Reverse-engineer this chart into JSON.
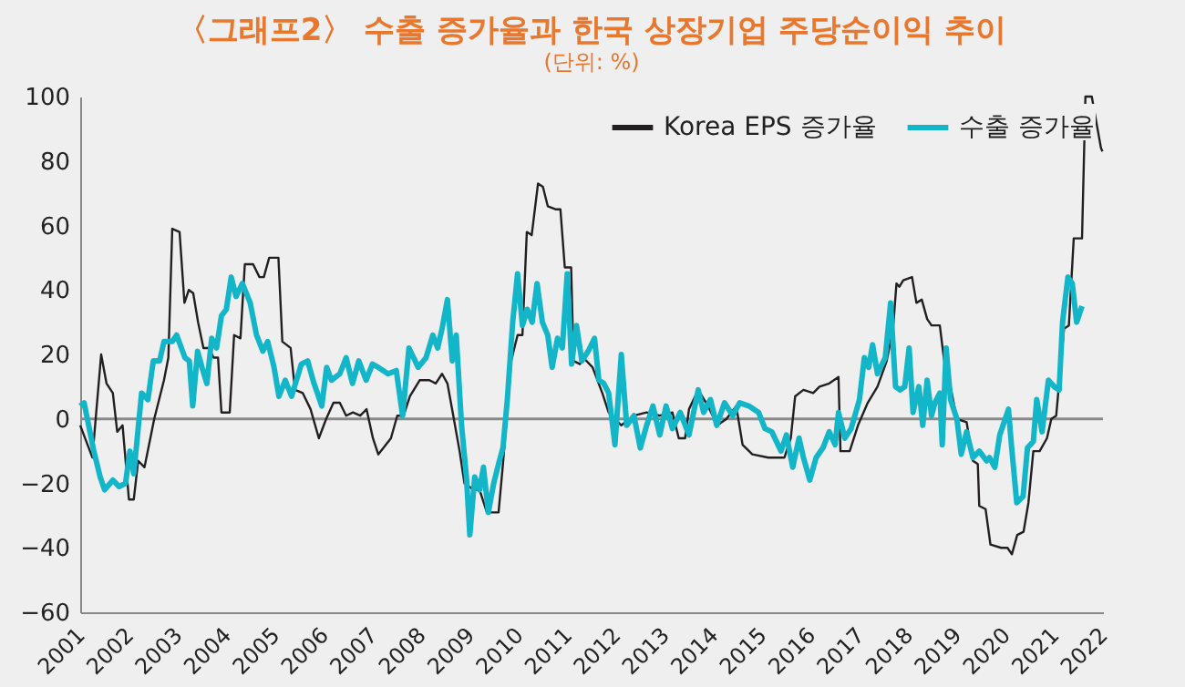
{
  "chart_data": {
    "type": "line",
    "title": "〈그래프2〉 수출 증가율과 한국 상장기업 주당순이익 추이",
    "subtitle": "(단위: %)",
    "xlim": [
      2001,
      2022
    ],
    "xticks": [
      2001,
      2002,
      2003,
      2004,
      2005,
      2006,
      2007,
      2008,
      2009,
      2010,
      2011,
      2012,
      2013,
      2014,
      2015,
      2016,
      2017,
      2018,
      2019,
      2020,
      2021,
      2022
    ],
    "ylim": [
      -60,
      100
    ],
    "yticks": [
      -60,
      -40,
      -20,
      0,
      20,
      40,
      60,
      80,
      100
    ],
    "legend": "top right",
    "grid": false,
    "marker": "none",
    "line_style": "solid",
    "ref_lines": [
      {
        "axis": "y",
        "value": 0,
        "color": "#8a8a8a"
      }
    ],
    "series": [
      {
        "name": "Korea EPS 증가율",
        "color": "#231f20",
        "x": [
          2001.0,
          2001.25,
          2001.43,
          2001.54,
          2001.67,
          2001.76,
          2001.87,
          2002.0,
          2002.1,
          2002.19,
          2002.32,
          2002.52,
          2002.72,
          2002.81,
          2002.89,
          2003.04,
          2003.14,
          2003.23,
          2003.32,
          2003.42,
          2003.53,
          2003.64,
          2003.74,
          2003.83,
          2003.9,
          2004.07,
          2004.16,
          2004.29,
          2004.38,
          2004.55,
          2004.68,
          2004.77,
          2004.88,
          2005.07,
          2005.15,
          2005.32,
          2005.41,
          2005.57,
          2005.73,
          2005.9,
          2006.05,
          2006.2,
          2006.33,
          2006.46,
          2006.6,
          2006.75,
          2006.88,
          2007.01,
          2007.12,
          2007.38,
          2007.51,
          2007.64,
          2007.77,
          2007.97,
          2008.17,
          2008.3,
          2008.43,
          2008.54,
          2008.66,
          2008.79,
          2008.89,
          2009.08,
          2009.2,
          2009.35,
          2009.59,
          2009.68,
          2009.85,
          2009.98,
          2010.08,
          2010.17,
          2010.27,
          2010.4,
          2010.5,
          2010.6,
          2010.77,
          2010.86,
          2010.95,
          2011.08,
          2011.13,
          2011.26,
          2011.33,
          2011.52,
          2011.72,
          2011.85,
          2011.98,
          2012.11,
          2012.37,
          2012.63,
          2012.9,
          2013.16,
          2013.29,
          2013.42,
          2013.5,
          2013.69,
          2013.89,
          2014.08,
          2014.27,
          2014.47,
          2014.6,
          2014.8,
          2015.13,
          2015.46,
          2015.59,
          2015.68,
          2015.85,
          2016.05,
          2016.18,
          2016.38,
          2016.57,
          2016.61,
          2016.8,
          2016.97,
          2017.17,
          2017.37,
          2017.56,
          2017.69,
          2017.76,
          2017.82,
          2017.9,
          2018.08,
          2018.17,
          2018.28,
          2018.39,
          2018.48,
          2018.65,
          2018.74,
          2018.87,
          2019.0,
          2019.2,
          2019.33,
          2019.43,
          2019.46,
          2019.59,
          2019.69,
          2019.91,
          2020.04,
          2020.13,
          2020.24,
          2020.37,
          2020.47,
          2020.57,
          2020.7,
          2020.85,
          2020.94,
          2021.04,
          2021.2,
          2021.3,
          2021.4,
          2021.57,
          2021.64,
          2021.77,
          2021.96,
          2021.99
        ],
        "values": [
          -2,
          -12,
          20,
          11,
          8,
          -4,
          -2,
          -25,
          -25,
          -13,
          -15,
          0,
          12,
          19,
          59,
          58,
          36,
          40,
          39,
          30,
          22,
          22,
          19,
          19,
          2,
          2,
          26,
          25,
          48,
          48,
          44,
          44,
          50,
          50,
          24,
          22,
          9,
          8,
          3,
          -6,
          0,
          5,
          5,
          1,
          2,
          1,
          3,
          -6,
          -11,
          -6,
          1,
          1,
          7,
          12,
          12,
          11,
          14,
          11,
          1,
          -10,
          -20,
          -22,
          -22,
          -29,
          -29,
          -14,
          18,
          26,
          26,
          58,
          57,
          73,
          72,
          66,
          65,
          65,
          47,
          47,
          18,
          17,
          19,
          16,
          8,
          2,
          0,
          -2,
          1,
          2,
          1,
          2,
          -6,
          -6,
          3,
          9,
          4,
          -2,
          0,
          4,
          -8,
          -11,
          -12,
          -12,
          -6,
          7,
          9,
          8,
          10,
          11,
          13,
          -10,
          -10,
          -2,
          5,
          10,
          18,
          28,
          42,
          41,
          43,
          44,
          36,
          37,
          31,
          29,
          29,
          18,
          10,
          0,
          -1,
          -13,
          -14,
          -27,
          -28,
          -39,
          -40,
          -40,
          -42,
          -36,
          -35,
          -26,
          -10,
          -10,
          -6,
          0,
          1,
          28,
          29,
          56,
          56,
          100,
          100,
          84,
          83
        ]
      },
      {
        "name": "수출 증가율",
        "color": "#13b5c8",
        "x": [
          2001.0,
          2001.08,
          2001.28,
          2001.41,
          2001.5,
          2001.67,
          2001.8,
          2001.93,
          2002.02,
          2002.1,
          2002.26,
          2002.39,
          2002.5,
          2002.63,
          2002.72,
          2002.89,
          2002.98,
          2003.15,
          2003.24,
          2003.31,
          2003.41,
          2003.5,
          2003.6,
          2003.7,
          2003.8,
          2003.9,
          2004.0,
          2004.1,
          2004.2,
          2004.33,
          2004.49,
          2004.62,
          2004.75,
          2004.85,
          2004.98,
          2005.08,
          2005.21,
          2005.34,
          2005.54,
          2005.67,
          2005.8,
          2005.96,
          2006.06,
          2006.16,
          2006.33,
          2006.46,
          2006.59,
          2006.72,
          2006.87,
          2007.0,
          2007.12,
          2007.32,
          2007.49,
          2007.62,
          2007.75,
          2007.94,
          2008.1,
          2008.24,
          2008.34,
          2008.43,
          2008.54,
          2008.64,
          2008.72,
          2008.83,
          2008.93,
          2009.0,
          2009.1,
          2009.2,
          2009.28,
          2009.38,
          2009.49,
          2009.59,
          2009.68,
          2009.77,
          2009.88,
          2009.98,
          2010.08,
          2010.18,
          2010.28,
          2010.38,
          2010.49,
          2010.6,
          2010.69,
          2010.8,
          2010.9,
          2011.0,
          2011.09,
          2011.19,
          2011.3,
          2011.43,
          2011.56,
          2011.65,
          2011.75,
          2011.85,
          2011.98,
          2012.11,
          2012.22,
          2012.37,
          2012.5,
          2012.63,
          2012.76,
          2012.9,
          2013.03,
          2013.16,
          2013.32,
          2013.5,
          2013.69,
          2013.8,
          2013.94,
          2014.07,
          2014.23,
          2014.4,
          2014.54,
          2014.73,
          2014.93,
          2015.06,
          2015.2,
          2015.39,
          2015.5,
          2015.63,
          2015.76,
          2015.85,
          2015.98,
          2016.11,
          2016.25,
          2016.38,
          2016.5,
          2016.57,
          2016.7,
          2016.83,
          2017.0,
          2017.1,
          2017.19,
          2017.27,
          2017.37,
          2017.53,
          2017.64,
          2017.74,
          2017.83,
          2017.93,
          2018.02,
          2018.1,
          2018.22,
          2018.3,
          2018.39,
          2018.48,
          2018.55,
          2018.65,
          2018.7,
          2018.78,
          2018.87,
          2019.0,
          2019.09,
          2019.2,
          2019.33,
          2019.46,
          2019.61,
          2019.67,
          2019.78,
          2019.88,
          2020.06,
          2020.12,
          2020.23,
          2020.36,
          2020.45,
          2020.57,
          2020.64,
          2020.75,
          2020.88,
          2021.0,
          2021.1,
          2021.17,
          2021.28,
          2021.37,
          2021.46,
          2021.57
        ],
        "values": [
          4,
          5,
          -10,
          -18,
          -22,
          -19,
          -21,
          -20,
          -10,
          -17,
          8,
          6,
          18,
          18,
          24,
          24,
          26,
          19,
          18,
          4,
          21,
          16,
          11,
          25,
          22,
          32,
          34,
          44,
          38,
          42,
          36,
          26,
          21,
          24,
          16,
          7,
          12,
          7,
          17,
          18,
          11,
          4,
          16,
          12,
          14,
          19,
          11,
          18,
          12,
          17,
          16,
          14,
          15,
          1,
          22,
          16,
          19,
          26,
          22,
          28,
          37,
          18,
          26,
          -2,
          -18,
          -36,
          -18,
          -22,
          -15,
          -29,
          -20,
          -14,
          -9,
          6,
          30,
          45,
          29,
          34,
          30,
          42,
          30,
          26,
          16,
          25,
          22,
          45,
          17,
          29,
          18,
          21,
          25,
          12,
          11,
          8,
          -8,
          20,
          -2,
          1,
          -9,
          -2,
          4,
          -5,
          4,
          -3,
          2,
          -5,
          9,
          2,
          6,
          -2,
          5,
          1,
          5,
          4,
          2,
          -3,
          -4,
          -10,
          -5,
          -15,
          -6,
          -12,
          -19,
          -12,
          -9,
          -4,
          -8,
          2,
          -6,
          -3,
          6,
          19,
          16,
          23,
          14,
          19,
          36,
          10,
          9,
          10,
          22,
          2,
          10,
          -2,
          12,
          1,
          5,
          8,
          -8,
          22,
          6,
          0,
          -11,
          -4,
          -12,
          -10,
          -13,
          -12,
          -15,
          -5,
          3,
          -8,
          -26,
          -24,
          -9,
          -7,
          6,
          -4,
          12,
          10,
          9,
          30,
          44,
          42,
          30,
          35
        ]
      }
    ]
  }
}
